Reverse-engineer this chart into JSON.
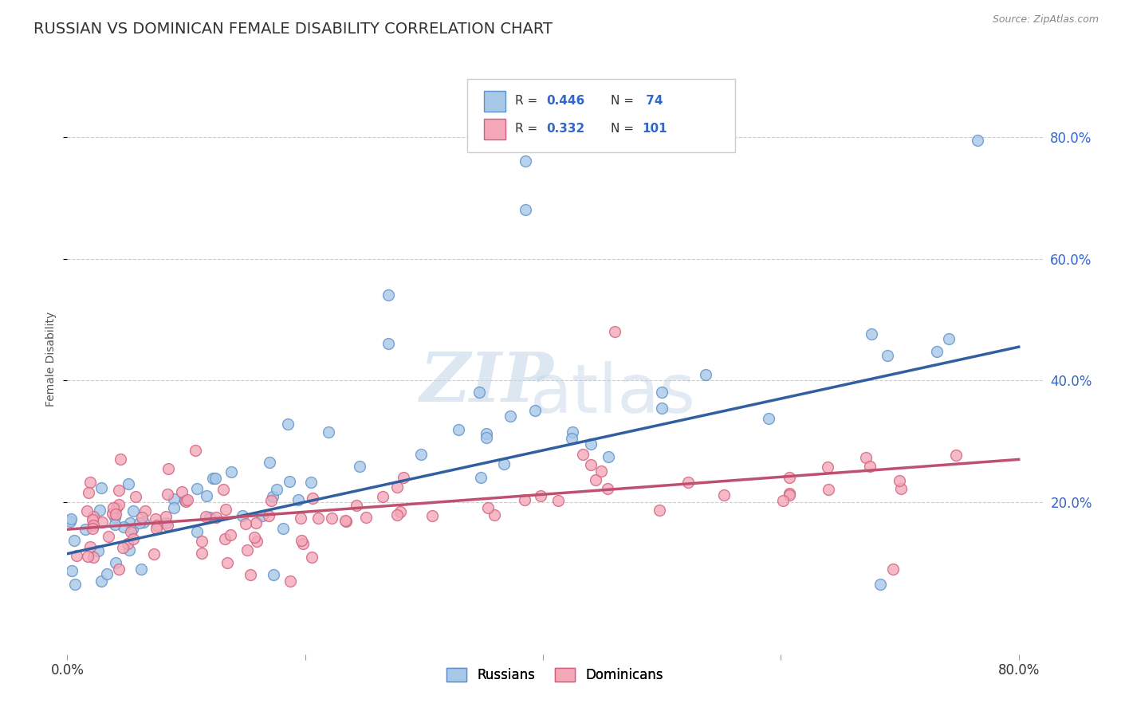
{
  "title": "RUSSIAN VS DOMINICAN FEMALE DISABILITY CORRELATION CHART",
  "source": "Source: ZipAtlas.com",
  "ylabel": "Female Disability",
  "ytick_labels": [
    "80.0%",
    "60.0%",
    "40.0%",
    "20.0%"
  ],
  "ytick_values": [
    0.8,
    0.6,
    0.4,
    0.2
  ],
  "xlim": [
    0.0,
    0.82
  ],
  "ylim": [
    -0.05,
    0.92
  ],
  "russian_R": 0.446,
  "russian_N": 74,
  "dominican_R": 0.332,
  "dominican_N": 101,
  "russian_color": "#A8C8E8",
  "dominican_color": "#F4A8B8",
  "russian_edge_color": "#6090C8",
  "dominican_edge_color": "#D06080",
  "russian_line_color": "#3060A0",
  "dominican_line_color": "#C05070",
  "legend_russian_label": "Russians",
  "legend_dominican_label": "Dominicans",
  "background_color": "#FFFFFF",
  "grid_color": "#CCCCCC",
  "watermark_zip": "ZIP",
  "watermark_atlas": "atlas",
  "title_fontsize": 14,
  "axis_label_fontsize": 10,
  "tick_fontsize": 12,
  "tick_color": "#3366CC",
  "russian_line_start_y": 0.115,
  "russian_line_end_y": 0.455,
  "dominican_line_start_y": 0.155,
  "dominican_line_end_y": 0.27
}
